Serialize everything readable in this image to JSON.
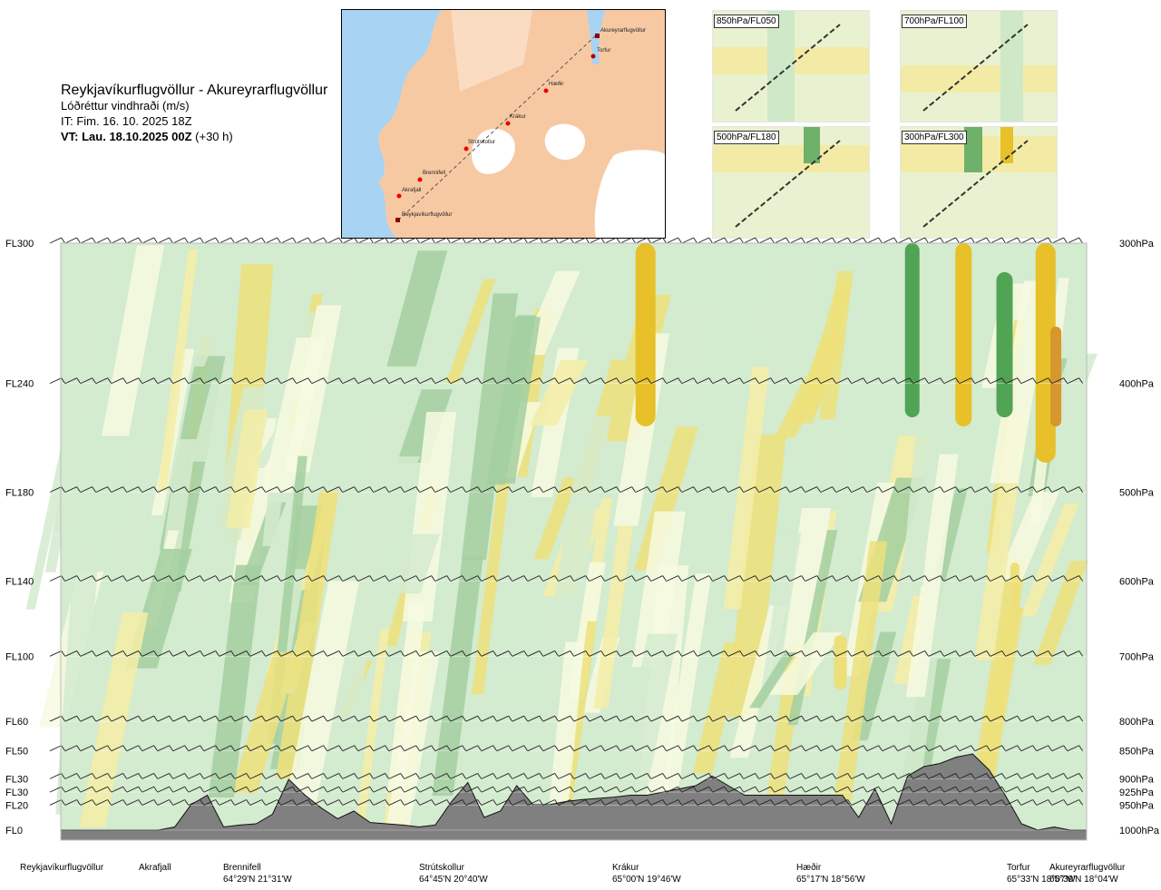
{
  "header": {
    "route": "Reykjavíkurflugvöllur - Akureyrarflugvöllur",
    "variable": "Lóðréttur vindhraði (m/s)",
    "it": "IT: Fim. 16. 10. 2025 18Z",
    "vt_bold": "VT: Lau. 18.10.2025 00Z",
    "vt_suffix": " (+30 h)"
  },
  "map": {
    "labels": [
      "Akureyrarflugvöllur",
      "Torfur",
      "Hæðir",
      "Krákur",
      "Strútskollur",
      "Brennifell",
      "Akrafjall",
      "Reykjavíkurflugvöllur"
    ]
  },
  "panels": [
    {
      "label": "850hPa/FL050"
    },
    {
      "label": "700hPa/FL100"
    },
    {
      "label": "500hPa/FL180"
    },
    {
      "label": "300hPa/FL300"
    }
  ],
  "chart_data": {
    "type": "heatmap",
    "title": "Lóðréttur vindhraði (m/s)",
    "y_left_labels": [
      "FL300",
      "FL240",
      "FL180",
      "FL140",
      "FL100",
      "FL60",
      "FL50",
      "FL30",
      "FL30",
      "FL20",
      "FL0"
    ],
    "y_right_labels": [
      "300hPa",
      "400hPa",
      "500hPa",
      "600hPa",
      "700hPa",
      "800hPa",
      "850hPa",
      "900hPa",
      "925hPa",
      "950hPa",
      "1000hPa"
    ],
    "pressure_levels_hpa": [
      300,
      400,
      500,
      600,
      700,
      800,
      850,
      900,
      925,
      950,
      1000
    ],
    "ylim_hpa": [
      1000,
      300
    ],
    "colors": {
      "strong_down": "#52a455",
      "moderate_down": "#a3cfa0",
      "weak_down": "#d3ebcf",
      "neutral": "#f7fae0",
      "weak_up": "#f4eda7",
      "moderate_up": "#ede07a",
      "strong_up": "#e7c02a",
      "very_strong_up": "#d8962e",
      "terrain": "#808080"
    },
    "locations": [
      {
        "name": "Reykjavíkurflugvöllur",
        "coords": ""
      },
      {
        "name": "Akrafjall",
        "coords": ""
      },
      {
        "name": "Brennifell",
        "coords": "64°29'N 21°31'W"
      },
      {
        "name": "Strútskollur",
        "coords": "64°45'N 20°40'W"
      },
      {
        "name": "Krákur",
        "coords": "65°00'N 19°46'W"
      },
      {
        "name": "Hæðir",
        "coords": "65°17'N 18°56'W"
      },
      {
        "name": "Torfur",
        "coords": "65°33'N 18°07'W"
      },
      {
        "name": "Akureyrarflugvöllur",
        "coords": "65°39'N 18°04'W"
      }
    ],
    "terrain_profile_fraction": [
      0.0,
      0.0,
      0.0,
      0.0,
      0.0,
      0.0,
      0.0,
      0.05,
      0.4,
      0.55,
      0.05,
      0.08,
      0.1,
      0.25,
      0.8,
      0.55,
      0.35,
      0.18,
      0.3,
      0.12,
      0.1,
      0.08,
      0.05,
      0.08,
      0.45,
      0.75,
      0.2,
      0.3,
      0.7,
      0.4,
      0.4,
      0.45,
      0.48,
      0.5,
      0.52,
      0.55,
      0.55,
      0.6,
      0.65,
      0.7,
      0.85,
      0.7,
      0.55,
      0.55,
      0.55,
      0.55,
      0.55,
      0.55,
      0.55,
      0.2,
      0.65,
      0.1,
      0.85,
      1.0,
      1.05,
      1.15,
      1.2,
      0.95,
      0.55,
      0.1,
      0.0,
      0.05,
      0.0,
      0.0
    ]
  }
}
